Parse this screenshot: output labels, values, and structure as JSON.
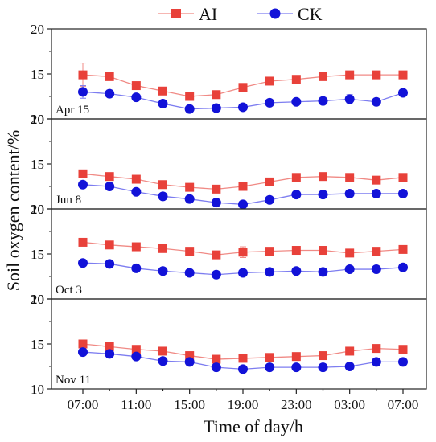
{
  "chart_data": {
    "type": "line",
    "xlabel": "Time of day/h",
    "ylabel": "Soil oxygen content/%",
    "x_ticks": [
      "07:00",
      "11:00",
      "15:00",
      "19:00",
      "23:00",
      "03:00",
      "07:00"
    ],
    "ylim": [
      10,
      20
    ],
    "y_ticks": [
      10,
      15,
      20
    ],
    "legend": {
      "placement": "top"
    },
    "colors": {
      "AI": "#e8413a",
      "CK": "#1212d8"
    },
    "panels": [
      {
        "label": "Apr 15",
        "series": [
          {
            "name": "AI",
            "values": [
              14.9,
              14.7,
              13.7,
              13.1,
              12.5,
              12.7,
              13.5,
              14.2,
              14.4,
              14.7,
              14.9,
              14.9,
              14.9
            ],
            "errors": [
              1.3,
              0.3,
              0.3,
              0.3,
              0.3,
              0.3,
              0.3,
              0.3,
              0.3,
              0.3,
              0.3,
              0.3,
              0.3
            ]
          },
          {
            "name": "CK",
            "values": [
              13.0,
              12.8,
              12.4,
              11.7,
              11.1,
              11.2,
              11.3,
              11.8,
              11.9,
              12.0,
              12.2,
              11.9,
              12.9
            ],
            "errors": [
              0.7,
              0.3,
              0.3,
              0.3,
              0.3,
              0.3,
              0.3,
              0.3,
              0.3,
              0.3,
              0.5,
              0.3,
              0.3
            ]
          }
        ]
      },
      {
        "label": "Jun 8",
        "series": [
          {
            "name": "AI",
            "values": [
              13.9,
              13.6,
              13.3,
              12.7,
              12.4,
              12.2,
              12.5,
              13.0,
              13.5,
              13.6,
              13.5,
              13.2,
              13.5
            ],
            "errors": [
              0.3,
              0.3,
              0.3,
              0.3,
              0.3,
              0.3,
              0.3,
              0.3,
              0.3,
              0.3,
              0.3,
              0.3,
              0.3
            ]
          },
          {
            "name": "CK",
            "values": [
              12.7,
              12.5,
              11.9,
              11.4,
              11.1,
              10.7,
              10.5,
              11.0,
              11.6,
              11.6,
              11.7,
              11.7,
              11.7
            ],
            "errors": [
              0.3,
              0.3,
              0.3,
              0.3,
              0.3,
              0.3,
              0.4,
              0.3,
              0.3,
              0.3,
              0.3,
              0.3,
              0.3
            ]
          }
        ]
      },
      {
        "label": "Oct 3",
        "series": [
          {
            "name": "AI",
            "values": [
              16.3,
              16.0,
              15.8,
              15.6,
              15.3,
              14.9,
              15.2,
              15.3,
              15.4,
              15.4,
              15.1,
              15.3,
              15.5
            ],
            "errors": [
              0.3,
              0.3,
              0.3,
              0.3,
              0.3,
              0.3,
              0.6,
              0.3,
              0.3,
              0.3,
              0.3,
              0.3,
              0.3
            ]
          },
          {
            "name": "CK",
            "values": [
              14.0,
              13.9,
              13.4,
              13.1,
              12.9,
              12.7,
              12.9,
              13.0,
              13.1,
              13.0,
              13.3,
              13.3,
              13.5
            ],
            "errors": [
              0.3,
              0.3,
              0.3,
              0.3,
              0.3,
              0.3,
              0.3,
              0.3,
              0.3,
              0.3,
              0.3,
              0.3,
              0.3
            ]
          }
        ]
      },
      {
        "label": "Nov 11",
        "series": [
          {
            "name": "AI",
            "values": [
              15.0,
              14.7,
              14.4,
              14.2,
              13.7,
              13.3,
              13.4,
              13.5,
              13.6,
              13.7,
              14.2,
              14.5,
              14.4
            ],
            "errors": [
              0.3,
              0.3,
              0.3,
              0.3,
              0.3,
              0.3,
              0.3,
              0.3,
              0.3,
              0.3,
              0.3,
              0.3,
              0.3
            ]
          },
          {
            "name": "CK",
            "values": [
              14.1,
              13.9,
              13.6,
              13.1,
              13.0,
              12.4,
              12.2,
              12.4,
              12.4,
              12.4,
              12.5,
              13.0,
              13.0
            ],
            "errors": [
              0.3,
              0.3,
              0.3,
              0.3,
              0.3,
              0.3,
              0.3,
              0.3,
              0.3,
              0.3,
              0.3,
              0.3,
              0.3
            ]
          }
        ]
      }
    ]
  }
}
